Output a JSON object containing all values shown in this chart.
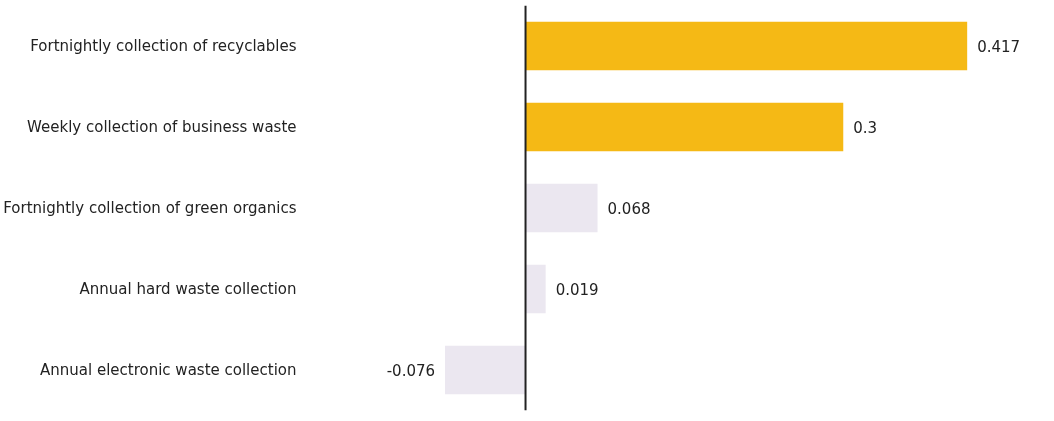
{
  "chart_data": {
    "type": "bar",
    "orientation": "horizontal",
    "categories": [
      "Fortnightly collection of recyclables",
      "Weekly collection of business waste",
      "Fortnightly collection of green organics",
      "Annual hard waste collection",
      "Annual electronic waste collection"
    ],
    "values": [
      0.417,
      0.3,
      0.068,
      0.019,
      -0.076
    ],
    "colors": [
      "#f5b915",
      "#f5b915",
      "#ebe7f0",
      "#ebe7f0",
      "#ebe7f0"
    ],
    "data_labels": true,
    "tick_labels": "y",
    "ref_lines": [
      {
        "axis": "x",
        "value": 0,
        "color": "#222222"
      }
    ]
  }
}
